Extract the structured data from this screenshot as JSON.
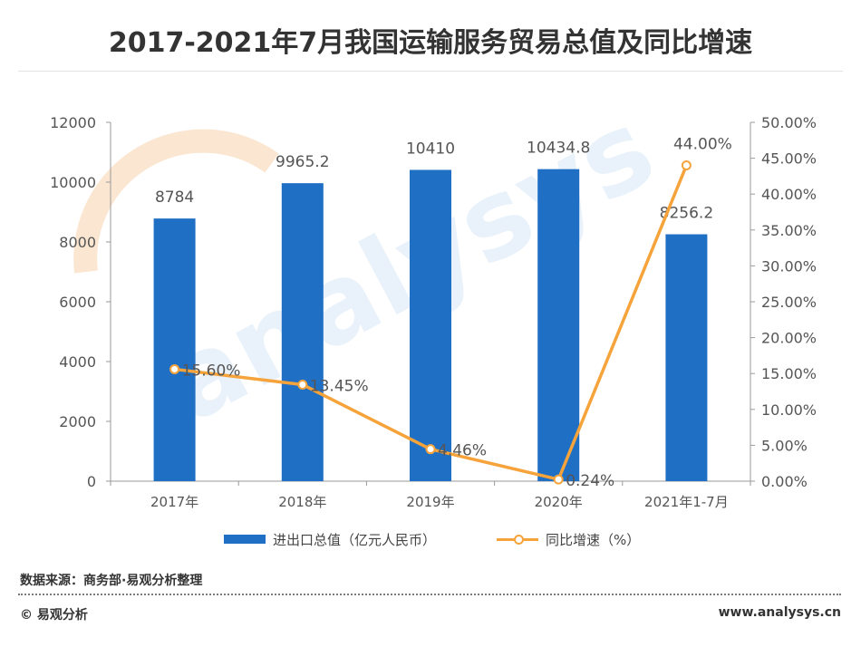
{
  "title": "2017-2021年7月我国运输服务贸易总值及同比增速",
  "source": "数据来源：商务部·易观分析整理",
  "brand": "© 易观分析",
  "website": "www.analysys.cn",
  "watermark": {
    "text": "analysys",
    "cn": "易观分析"
  },
  "colors": {
    "bar": "#1f6fc5",
    "line": "#f5a33a",
    "axis": "#9a9a9a",
    "text": "#555555"
  },
  "chart_data": {
    "type": "bar",
    "categories": [
      "2017年",
      "2018年",
      "2019年",
      "2020年",
      "2021年1-7月"
    ],
    "series": [
      {
        "name": "进出口总值（亿元人民币）",
        "type": "bar",
        "axis": "left",
        "values": [
          8784,
          9965.2,
          10410,
          10434.8,
          8256.2
        ],
        "labels": [
          "8784",
          "9965.2",
          "10410",
          "10434.8",
          "8256.2"
        ]
      },
      {
        "name": "同比增速（%）",
        "type": "line",
        "axis": "right",
        "values": [
          15.6,
          13.45,
          4.46,
          0.24,
          44.0
        ],
        "labels": [
          "15.60%",
          "13.45%",
          "4.46%",
          "0.24%",
          "44.00%"
        ]
      }
    ],
    "y_left": {
      "min": 0,
      "max": 12000,
      "ticks": [
        "0",
        "2000",
        "4000",
        "6000",
        "8000",
        "10000",
        "12000"
      ]
    },
    "y_right": {
      "min": 0,
      "max": 50,
      "ticks": [
        "0.00%",
        "5.00%",
        "10.00%",
        "15.00%",
        "20.00%",
        "25.00%",
        "30.00%",
        "35.00%",
        "40.00%",
        "45.00%",
        "50.00%"
      ]
    },
    "grid": false,
    "legend": "bottom"
  }
}
